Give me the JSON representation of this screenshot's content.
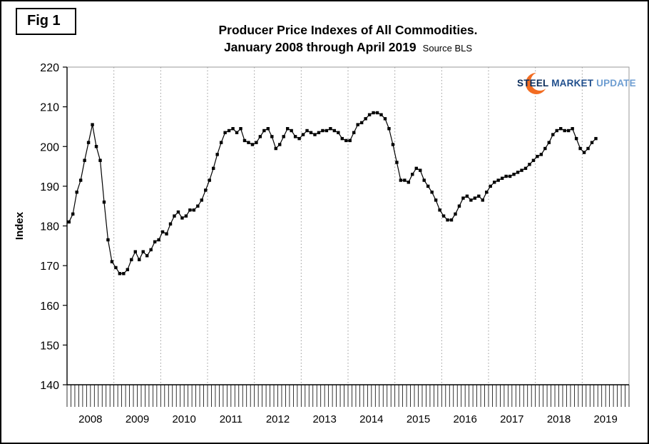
{
  "figure_label": "Fig 1",
  "header": {
    "title_line1": "Producer Price Indexes of All Commodities.",
    "title_line2": "January 2008 through April 2019",
    "source_note": "Source BLS"
  },
  "logo": {
    "word1": "STEEL",
    "word2": "MARKET",
    "word3": "UPDATE",
    "crescent_color": "#F26C21",
    "word1_color": "#0B2D5B",
    "word2_color": "#1F4E8C",
    "word3_color": "#6D9DD1"
  },
  "chart_data": {
    "type": "line",
    "title": "Producer Price Indexes of All Commodities. January 2008 through April 2019",
    "source": "BLS",
    "xlabel": "",
    "ylabel": "Index",
    "ylim": [
      140,
      220
    ],
    "ytick_step": 10,
    "grid": "vertical dotted gridlines at year boundaries, no horizontal gridlines",
    "legend": "none",
    "marker": "filled black square",
    "line_color": "#000000",
    "x_start": "2008-01",
    "x_end": "2019-04",
    "x_axis_extends_to": "2019-12",
    "years": [
      "2008",
      "2009",
      "2010",
      "2011",
      "2012",
      "2013",
      "2014",
      "2015",
      "2016",
      "2017",
      "2018",
      "2019"
    ],
    "values_monthly": [
      181,
      183,
      188.5,
      191.5,
      196.5,
      201,
      205.5,
      200,
      196.5,
      186,
      176.5,
      171,
      169.5,
      168,
      168,
      169,
      171.5,
      173.5,
      171.5,
      173.5,
      172.5,
      174,
      176,
      176.5,
      178.5,
      178,
      180.5,
      182.5,
      183.5,
      182,
      182.5,
      184,
      184,
      185,
      186.5,
      189,
      191.5,
      194.5,
      198,
      201,
      203.5,
      204,
      204.5,
      203.5,
      204.5,
      201.5,
      201,
      200.5,
      201,
      202.5,
      204,
      204.5,
      202.5,
      199.5,
      200.5,
      202.5,
      204.5,
      204,
      202.5,
      202,
      203,
      204,
      203.5,
      203,
      203.5,
      204,
      204,
      204.5,
      204,
      203.5,
      202,
      201.5,
      201.5,
      203.5,
      205.5,
      206,
      207,
      208,
      208.5,
      208.5,
      208,
      207,
      204.5,
      200.5,
      196,
      191.5,
      191.5,
      191,
      193,
      194.5,
      194,
      191.5,
      190,
      188.5,
      186.5,
      184,
      182.5,
      181.5,
      181.5,
      183,
      185,
      187,
      187.5,
      186.5,
      187,
      187.5,
      186.5,
      188.5,
      190,
      191,
      191.5,
      192,
      192.5,
      192.5,
      193,
      193.5,
      194,
      194.5,
      195.5,
      196.5,
      197.5,
      198,
      199.5,
      201,
      203,
      204,
      204.5,
      204,
      204,
      204.5,
      202,
      199.5,
      198.5,
      199.5,
      201,
      202
    ]
  }
}
